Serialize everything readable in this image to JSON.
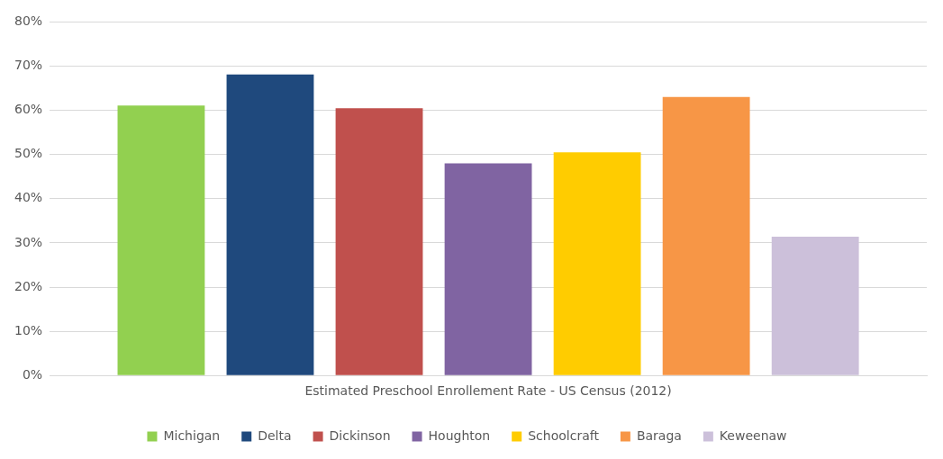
{
  "chart_data": {
    "type": "bar",
    "categories": [
      "Estimated Preschool Enrollement Rate - US Census (2012)"
    ],
    "series": [
      {
        "name": "Michigan",
        "color": "#92d050",
        "values": [
          61.1
        ]
      },
      {
        "name": "Delta",
        "color": "#1f497d",
        "values": [
          68.1
        ]
      },
      {
        "name": "Dickinson",
        "color": "#c0504d",
        "values": [
          60.5
        ]
      },
      {
        "name": "Houghton",
        "color": "#8064a2",
        "values": [
          48.0
        ]
      },
      {
        "name": "Schoolcraft",
        "color": "#ffcc00",
        "values": [
          50.5
        ]
      },
      {
        "name": "Baraga",
        "color": "#f79646",
        "values": [
          63.0
        ]
      },
      {
        "name": "Keweenaw",
        "color": "#ccc0da",
        "values": [
          31.4
        ]
      }
    ],
    "ylim": [
      0,
      80
    ],
    "yticks": [
      {
        "value": 0,
        "label": "0%"
      },
      {
        "value": 10,
        "label": "10%"
      },
      {
        "value": 20,
        "label": "20%"
      },
      {
        "value": 30,
        "label": "30%"
      },
      {
        "value": 40,
        "label": "40%"
      },
      {
        "value": 50,
        "label": "50%"
      },
      {
        "value": 60,
        "label": "60%"
      },
      {
        "value": 70,
        "label": "70%"
      },
      {
        "value": 80,
        "label": "80%"
      }
    ],
    "grid": "y",
    "legend": "bottom"
  }
}
